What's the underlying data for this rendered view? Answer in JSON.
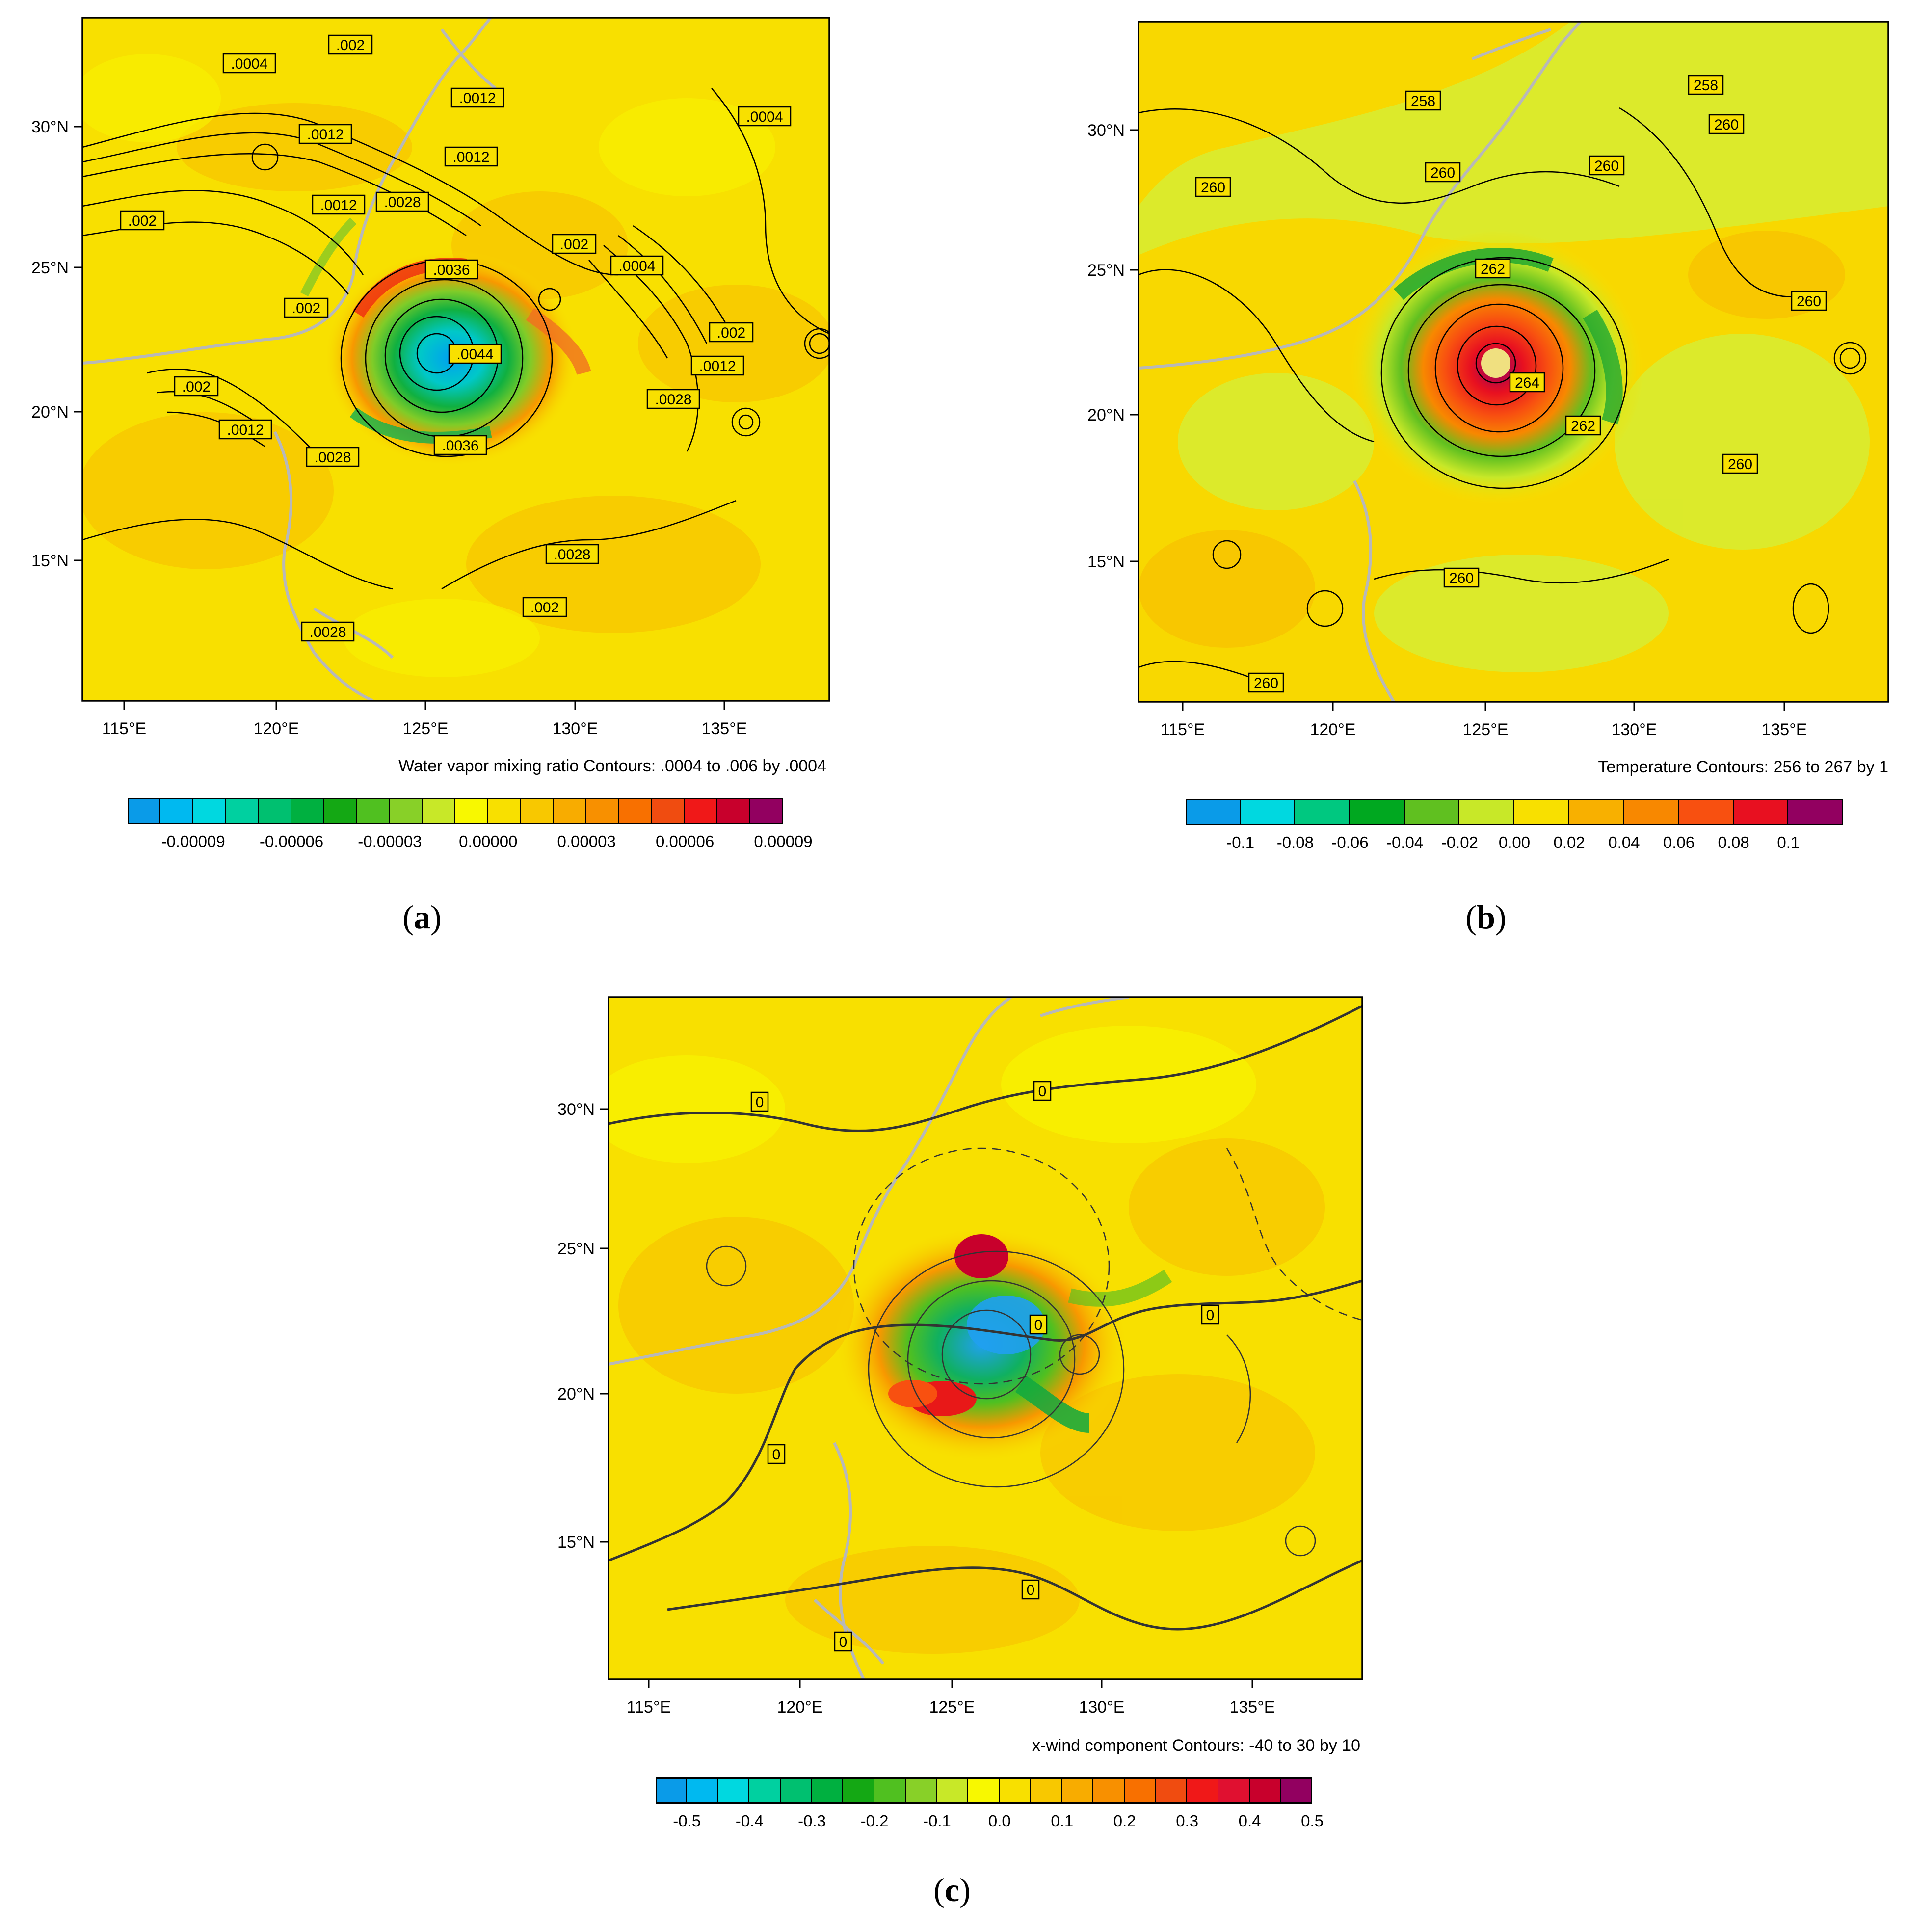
{
  "panels": [
    {
      "id": "a",
      "caption": "a",
      "contour_title": "Water vapor mixing ratio Contours: .0004 to .006 by .0004",
      "lon_ticks": [
        "115°E",
        "120°E",
        "125°E",
        "130°E",
        "135°E"
      ],
      "lat_ticks": [
        "30°N",
        "25°N",
        "20°N",
        "15°N"
      ],
      "contour_labels": [
        ".0004",
        ".002",
        ".0012",
        ".0004",
        ".0012",
        ".0012",
        ".0012",
        ".002",
        ".0028",
        ".002",
        ".0036",
        ".0004",
        ".002",
        ".002",
        ".0044",
        ".002",
        ".0012",
        ".0028",
        ".0012",
        ".0036",
        ".0028",
        ".0028",
        ".002",
        ".0028"
      ],
      "colorbar": {
        "colors": [
          "#0a9be8",
          "#00b9f0",
          "#00d8e0",
          "#00d0a0",
          "#00c070",
          "#00b040",
          "#14a814",
          "#50c020",
          "#88d028",
          "#c8e828",
          "#f8f800",
          "#f8e000",
          "#f8c800",
          "#f8ac00",
          "#f89000",
          "#f87000",
          "#f04c10",
          "#f01818",
          "#c8002c",
          "#920060"
        ],
        "tick_labels": [
          "-0.00009",
          "-0.00006",
          "-0.00003",
          "0.00000",
          "0.00003",
          "0.00006",
          "0.00009"
        ]
      }
    },
    {
      "id": "b",
      "caption": "b",
      "contour_title": "Temperature Contours: 256 to 267 by 1",
      "lon_ticks": [
        "115°E",
        "120°E",
        "125°E",
        "130°E",
        "135°E"
      ],
      "lat_ticks": [
        "30°N",
        "25°N",
        "20°N",
        "15°N"
      ],
      "contour_labels": [
        "258",
        "258",
        "260",
        "260",
        "260",
        "260",
        "262",
        "260",
        "264",
        "262",
        "260",
        "260",
        "260"
      ],
      "colorbar": {
        "colors": [
          "#0a9be8",
          "#00d8e0",
          "#00c880",
          "#00a820",
          "#60c020",
          "#c8e828",
          "#f8e000",
          "#f8b000",
          "#f88800",
          "#f85010",
          "#e81020",
          "#920060"
        ],
        "tick_labels": [
          "-0.1",
          "-0.08",
          "-0.06",
          "-0.04",
          "-0.02",
          "0.00",
          "0.02",
          "0.04",
          "0.06",
          "0.08",
          "0.1"
        ]
      }
    },
    {
      "id": "c",
      "caption": "c",
      "contour_title": "x-wind component Contours: -40 to 30 by 10",
      "lon_ticks": [
        "115°E",
        "120°E",
        "125°E",
        "130°E",
        "135°E"
      ],
      "lat_ticks": [
        "30°N",
        "25°N",
        "20°N",
        "15°N"
      ],
      "contour_labels": [
        "0",
        "0",
        "0",
        "0",
        "0",
        "0",
        "0"
      ],
      "colorbar": {
        "colors": [
          "#0a9be8",
          "#00b9f0",
          "#00d8e0",
          "#00d0a0",
          "#00c070",
          "#00b040",
          "#14a814",
          "#50c020",
          "#88d028",
          "#c8e828",
          "#f8f800",
          "#f8e000",
          "#f8c800",
          "#f8ac00",
          "#f89000",
          "#f87000",
          "#f04c10",
          "#f01818",
          "#e01030",
          "#c8002c",
          "#920060"
        ],
        "tick_labels": [
          "-0.5",
          "-0.4",
          "-0.3",
          "-0.2",
          "-0.1",
          "0.0",
          "0.1",
          "0.2",
          "0.3",
          "0.4",
          "0.5"
        ]
      }
    }
  ]
}
